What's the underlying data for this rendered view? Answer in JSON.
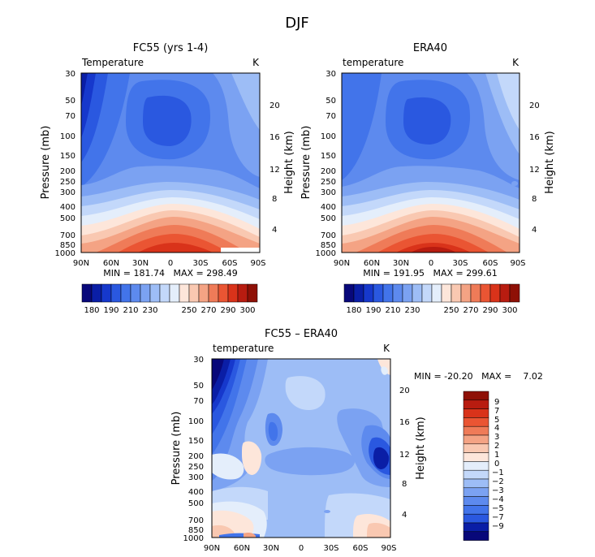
{
  "suptitle": "DJF",
  "chart_data": [
    {
      "type": "contour",
      "title": "FC55 (yrs 1-4)",
      "variable_label": "Temperature",
      "unit_label": "K",
      "ylabel_left": "Pressure (mb)",
      "ylabel_right": "Height (km)",
      "x_ticks": [
        "90N",
        "60N",
        "30N",
        "0",
        "30S",
        "60S",
        "90S"
      ],
      "pressure_ticks": [
        "30",
        "50",
        "70",
        "100",
        "150",
        "200",
        "250",
        "300",
        "400",
        "500",
        "700",
        "850",
        "1000"
      ],
      "height_ticks": [
        "20",
        "16",
        "12",
        "8",
        "4"
      ],
      "stats": "MIN = 181.74   MAX = 298.49",
      "colorbar_labels": [
        "180",
        "190",
        "210",
        "230",
        "250",
        "270",
        "290",
        "300"
      ]
    },
    {
      "type": "contour",
      "title": "ERA40",
      "variable_label": "temperature",
      "unit_label": "K",
      "ylabel_left": "Pressure (mb)",
      "ylabel_right": "Height (km)",
      "x_ticks": [
        "90N",
        "60N",
        "30N",
        "0",
        "30S",
        "60S",
        "90S"
      ],
      "pressure_ticks": [
        "30",
        "50",
        "70",
        "100",
        "150",
        "200",
        "250",
        "300",
        "400",
        "500",
        "700",
        "850",
        "1000"
      ],
      "height_ticks": [
        "20",
        "16",
        "12",
        "8",
        "4"
      ],
      "stats": "MIN = 191.95   MAX = 299.61",
      "colorbar_labels": [
        "180",
        "190",
        "210",
        "230",
        "250",
        "270",
        "290",
        "300"
      ]
    },
    {
      "type": "contour",
      "title": "FC55 – ERA40",
      "variable_label": "temperature",
      "unit_label": "K",
      "ylabel_left": "Pressure (mb)",
      "ylabel_right": "Height (km)",
      "x_ticks": [
        "90N",
        "60N",
        "30N",
        "0",
        "30S",
        "60S",
        "90S"
      ],
      "pressure_ticks": [
        "30",
        "50",
        "70",
        "100",
        "150",
        "200",
        "250",
        "300",
        "400",
        "500",
        "700",
        "850",
        "1000"
      ],
      "height_ticks": [
        "20",
        "16",
        "12",
        "8",
        "4"
      ],
      "stats": "MIN = -20.20   MAX =    7.02",
      "colorbar_labels": [
        "9",
        "7",
        "5",
        "4",
        "3",
        "2",
        "1",
        "0",
        "−1",
        "−2",
        "−3",
        "−4",
        "−5",
        "−7",
        "−9"
      ]
    }
  ],
  "colors": {
    "temp_scale": [
      "#08087a",
      "#0a1ea6",
      "#1638cc",
      "#2a58e0",
      "#4274ea",
      "#5d8aee",
      "#7ba2f2",
      "#9dbdf6",
      "#c3d8fa",
      "#e4eefb",
      "#fde6da",
      "#f9c8b1",
      "#f4a384",
      "#ef7b58",
      "#ea5533",
      "#d9331a",
      "#b81c10",
      "#8e1006"
    ],
    "diff_scale": [
      "#8e1006",
      "#b81c10",
      "#d9331a",
      "#ea5533",
      "#ef7b58",
      "#f4a384",
      "#f9c8b1",
      "#fde6da",
      "#e4eefb",
      "#c3d8fa",
      "#9dbdf6",
      "#7ba2f2",
      "#5d8aee",
      "#4274ea",
      "#2a58e0",
      "#0a1ea6",
      "#08087a"
    ]
  }
}
